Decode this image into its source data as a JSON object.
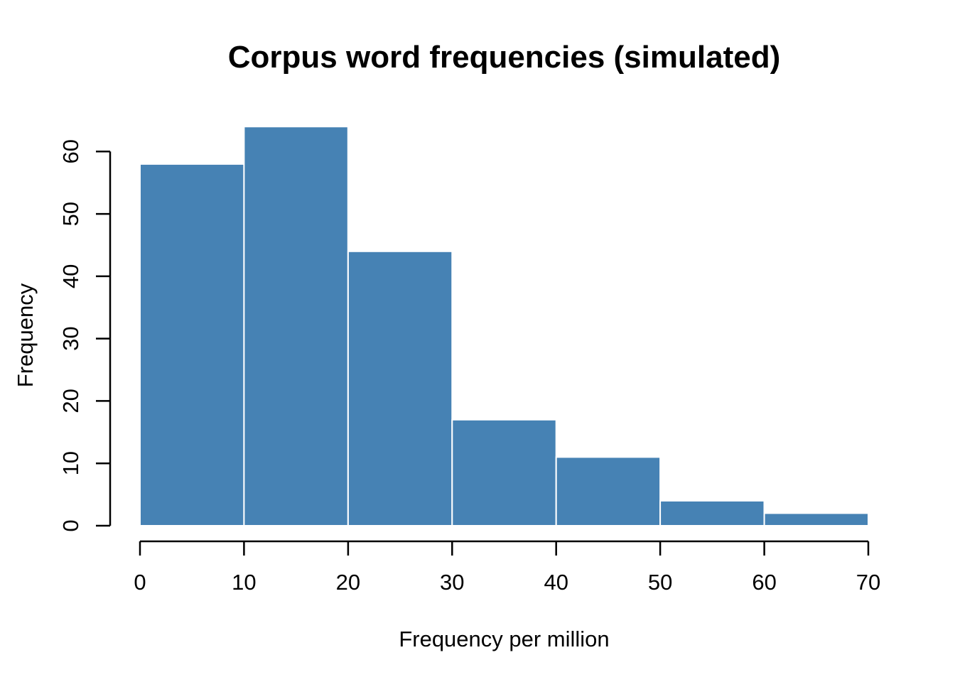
{
  "figure": {
    "background": "#FFFFFF"
  },
  "chart_data": {
    "type": "bar",
    "subtype": "histogram",
    "title": "Corpus word frequencies (simulated)",
    "xlabel": "Frequency per million",
    "ylabel": "Frequency",
    "bin_edges": [
      0,
      10,
      20,
      30,
      40,
      50,
      60,
      70
    ],
    "counts": [
      58,
      64,
      44,
      17,
      11,
      4,
      2
    ],
    "x_tick_values": [
      0,
      10,
      20,
      30,
      40,
      50,
      60,
      70
    ],
    "y_tick_values": [
      0,
      10,
      20,
      30,
      40,
      50,
      60
    ],
    "xlim": [
      0,
      70
    ],
    "ylim": [
      0,
      64
    ],
    "grid": false,
    "legend_position": "none",
    "bar_fill_color": "#4682B4",
    "bar_border_color": "#FFFFFF",
    "axis_color": "#000000",
    "text_color": "#000000"
  }
}
